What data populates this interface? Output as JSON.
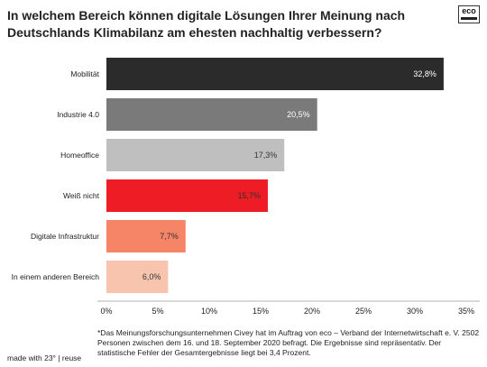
{
  "title": "In welchem Bereich können digitale Lösungen Ihrer Meinung nach Deutschlands Klimabilanz am ehesten nachhaltig verbessern?",
  "logo": {
    "text": "eco"
  },
  "chart_data": {
    "type": "bar",
    "orientation": "horizontal",
    "categories": [
      "Mobilität",
      "Industrie 4.0",
      "Homeoffice",
      "Weiß nicht",
      "Digitale Infrastruktur",
      "In einem anderen Bereich"
    ],
    "values": [
      32.8,
      20.5,
      17.3,
      15.7,
      7.7,
      6.0
    ],
    "value_labels": [
      "32,8%",
      "20,5%",
      "17,3%",
      "15,7%",
      "7,7%",
      "6,0%"
    ],
    "colors": [
      "#2b2b2b",
      "#7a7a7a",
      "#bfbfbf",
      "#ee1c25",
      "#f58566",
      "#f9c4ae"
    ],
    "label_colors": [
      "#ffffff",
      "#ffffff",
      "#333333",
      "#333333",
      "#333333",
      "#333333"
    ],
    "xlim": [
      0,
      35
    ],
    "ticks": [
      0,
      5,
      10,
      15,
      20,
      25,
      30,
      35
    ],
    "tick_labels": [
      "0%",
      "5%",
      "10%",
      "15%",
      "20%",
      "25%",
      "30%",
      "35%"
    ],
    "grid": false
  },
  "footnote": "*Das Meinungsforschungsunternehmen Civey hat im Auftrag von eco – Verband der Internetwirtschaft e. V. 2502 Personen zwischen dem 16. und 18. September 2020 befragt. Die Ergebnisse sind repräsentativ. Der statistische Fehler der Gesamtergebnisse liegt bei 3,4 Prozent.",
  "credit": "made with 23° | reuse"
}
